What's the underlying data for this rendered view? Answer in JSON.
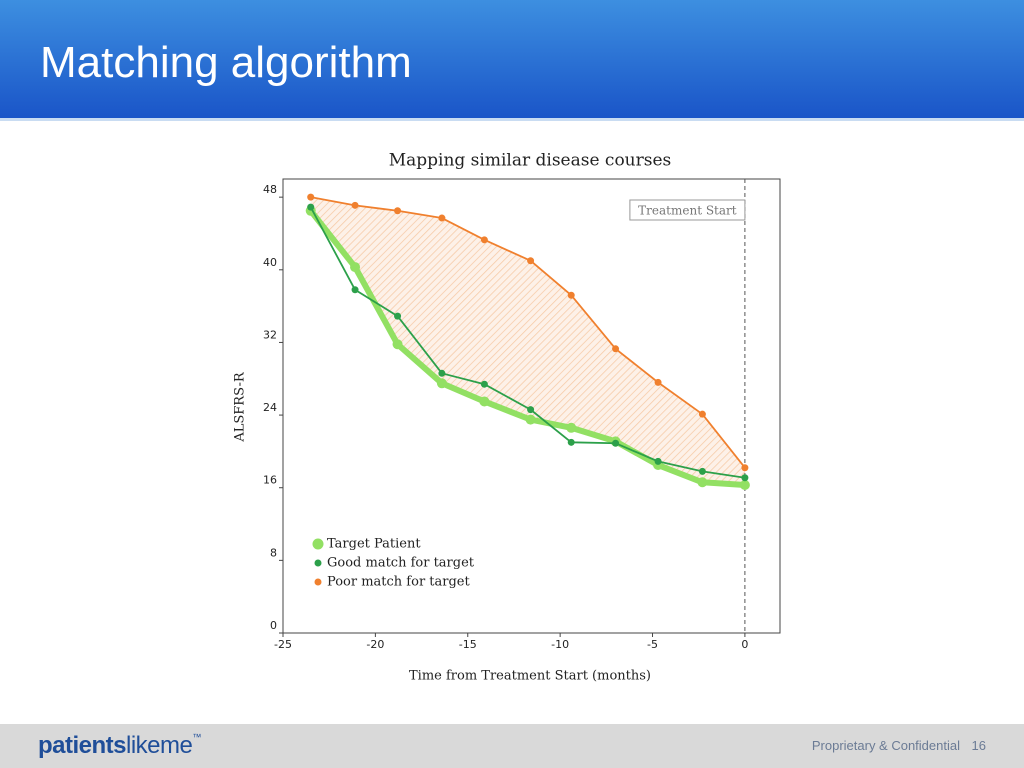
{
  "header": {
    "title": "Matching algorithm"
  },
  "footer": {
    "logo": {
      "part1": "patients",
      "part2": "likeme",
      "tm": "™"
    },
    "confidential": "Proprietary & Confidential",
    "page": "16"
  },
  "chart_data": {
    "type": "line",
    "title": "Mapping similar disease courses",
    "x_label": "Time from Treatment Start (months)",
    "y_label": "ALSFRS-R",
    "x": [
      -23.5,
      -21.1,
      -18.8,
      -16.4,
      -14.1,
      -11.6,
      -9.4,
      -7.0,
      -4.7,
      -2.3,
      0
    ],
    "series": [
      {
        "name": "Target Patient",
        "color": "#92e063",
        "values": [
          46.5,
          40.3,
          31.8,
          27.5,
          25.5,
          23.5,
          22.6,
          21.1,
          18.5,
          16.6,
          16.3
        ]
      },
      {
        "name": "Good match for target",
        "color": "#2ca04a",
        "values": [
          46.9,
          37.8,
          34.9,
          28.6,
          27.4,
          24.6,
          21.0,
          20.9,
          18.9,
          17.8,
          17.1
        ]
      },
      {
        "name": "Poor match for target",
        "color": "#f0802e",
        "values": [
          48.0,
          47.1,
          46.5,
          45.7,
          43.3,
          41.0,
          37.2,
          31.3,
          27.6,
          24.1,
          18.2
        ]
      }
    ],
    "xlim": [
      -25,
      1.9
    ],
    "ylim": [
      0,
      50
    ],
    "xticks": [
      -25,
      -20,
      -15,
      -10,
      -5,
      0
    ],
    "yticks": [
      0,
      8,
      16,
      24,
      32,
      40,
      48
    ],
    "legend": "lower left",
    "annotation": {
      "text": "Treatment Start",
      "x": 0
    }
  }
}
